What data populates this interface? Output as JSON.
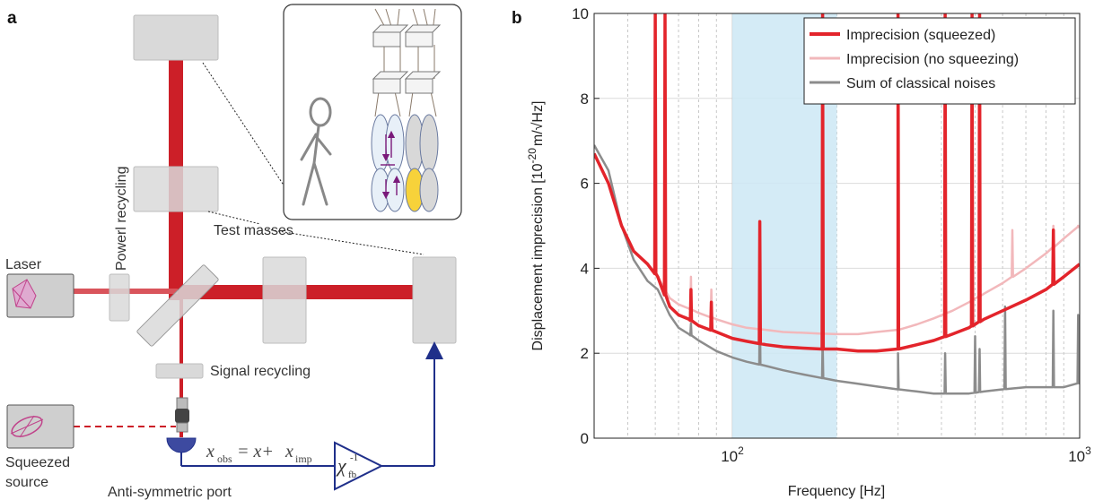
{
  "panel_a": {
    "label": "a",
    "laser_label": "Laser",
    "power_recycling_label": "Powerl recycling",
    "test_masses_label": "Test masses",
    "signal_recycling_label": "Signal recycling",
    "squeezed_source_line1": "Squeezed",
    "squeezed_source_line2": "source",
    "antisym_port_label": "Anti-symmetric port",
    "x_obs_main": "x",
    "x_obs_sub": "obs",
    "equals_plus": "= x+",
    "x_imp_main": "x",
    "x_imp_sub": "imp",
    "chi_main": "χ",
    "chi_sup": "-1",
    "chi_sub": "fb",
    "colors": {
      "beam": "#cc1f28",
      "beam_light": "#e26a70",
      "mirror": "#d9d9d9",
      "feedback": "#1f2f8a",
      "squeeze": "#c0428a"
    }
  },
  "panel_b": {
    "label": "b",
    "chart_data": {
      "type": "line",
      "xscale": "log",
      "xlim": [
        40,
        1000
      ],
      "ylim": [
        0,
        10
      ],
      "xlabel": "Frequency [Hz]",
      "ylabel_main": "Displacement imprecision [10",
      "ylabel_exp": "-20",
      "ylabel_unit": "m/√Hz]",
      "x_ticks": [
        {
          "value": 100,
          "base": "10",
          "exp": "2"
        },
        {
          "value": 1000,
          "base": "10",
          "exp": "3"
        }
      ],
      "y_ticks": [
        0,
        2,
        4,
        6,
        8,
        10
      ],
      "grid": true,
      "legend_position": "top-right",
      "highlight_band": {
        "from": 100,
        "to": 200,
        "color": "#cce8f4"
      },
      "series": [
        {
          "name": "Imprecision (squeezed)",
          "color": "#e3242b",
          "base": [
            [
              40,
              6.7
            ],
            [
              44,
              6.0
            ],
            [
              48,
              5.0
            ],
            [
              52,
              4.4
            ],
            [
              57,
              4.1
            ],
            [
              61,
              3.8
            ],
            [
              66,
              3.1
            ],
            [
              70,
              2.9
            ],
            [
              75,
              2.8
            ],
            [
              80,
              2.65
            ],
            [
              90,
              2.5
            ],
            [
              100,
              2.35
            ],
            [
              110,
              2.28
            ],
            [
              125,
              2.2
            ],
            [
              140,
              2.15
            ],
            [
              160,
              2.12
            ],
            [
              180,
              2.1
            ],
            [
              200,
              2.1
            ],
            [
              230,
              2.05
            ],
            [
              260,
              2.05
            ],
            [
              300,
              2.1
            ],
            [
              340,
              2.2
            ],
            [
              380,
              2.3
            ],
            [
              430,
              2.45
            ],
            [
              480,
              2.6
            ],
            [
              530,
              2.8
            ],
            [
              600,
              3.0
            ],
            [
              700,
              3.25
            ],
            [
              800,
              3.5
            ],
            [
              900,
              3.8
            ],
            [
              1000,
              4.1
            ]
          ],
          "spikes": [
            [
              60,
              10
            ],
            [
              64,
              10
            ],
            [
              76,
              3.5
            ],
            [
              87,
              3.2
            ],
            [
              120,
              5.1
            ],
            [
              182,
              10
            ],
            [
              300,
              10
            ],
            [
              410,
              10
            ],
            [
              490,
              10
            ],
            [
              515,
              10
            ],
            [
              840,
              4.9
            ]
          ]
        },
        {
          "name": "Imprecision (no squeezing)",
          "color": "#f2b8bb",
          "base": [
            [
              40,
              6.7
            ],
            [
              44,
              6.0
            ],
            [
              48,
              5.0
            ],
            [
              52,
              4.4
            ],
            [
              57,
              4.1
            ],
            [
              61,
              3.8
            ],
            [
              66,
              3.3
            ],
            [
              70,
              3.15
            ],
            [
              75,
              3.05
            ],
            [
              80,
              2.95
            ],
            [
              90,
              2.8
            ],
            [
              100,
              2.68
            ],
            [
              110,
              2.6
            ],
            [
              125,
              2.55
            ],
            [
              140,
              2.5
            ],
            [
              160,
              2.48
            ],
            [
              180,
              2.46
            ],
            [
              200,
              2.45
            ],
            [
              230,
              2.45
            ],
            [
              260,
              2.5
            ],
            [
              300,
              2.55
            ],
            [
              340,
              2.68
            ],
            [
              380,
              2.82
            ],
            [
              430,
              3.0
            ],
            [
              480,
              3.2
            ],
            [
              530,
              3.4
            ],
            [
              600,
              3.65
            ],
            [
              700,
              4.0
            ],
            [
              800,
              4.35
            ],
            [
              900,
              4.7
            ],
            [
              1000,
              5.0
            ]
          ],
          "spikes": [
            [
              76,
              3.8
            ],
            [
              87,
              3.5
            ],
            [
              120,
              5.1
            ],
            [
              182,
              10
            ],
            [
              300,
              10
            ],
            [
              515,
              10
            ],
            [
              640,
              4.9
            ],
            [
              840,
              5.0
            ],
            [
              990,
              5.0
            ]
          ]
        },
        {
          "name": "Sum of classical noises",
          "color": "#8c8c8c",
          "base": [
            [
              40,
              6.9
            ],
            [
              44,
              6.3
            ],
            [
              48,
              5.0
            ],
            [
              52,
              4.2
            ],
            [
              57,
              3.7
            ],
            [
              61,
              3.5
            ],
            [
              66,
              2.9
            ],
            [
              70,
              2.6
            ],
            [
              75,
              2.45
            ],
            [
              80,
              2.3
            ],
            [
              90,
              2.05
            ],
            [
              100,
              1.9
            ],
            [
              110,
              1.8
            ],
            [
              125,
              1.7
            ],
            [
              140,
              1.6
            ],
            [
              160,
              1.5
            ],
            [
              180,
              1.42
            ],
            [
              200,
              1.35
            ],
            [
              230,
              1.28
            ],
            [
              260,
              1.22
            ],
            [
              300,
              1.15
            ],
            [
              340,
              1.1
            ],
            [
              380,
              1.05
            ],
            [
              430,
              1.05
            ],
            [
              480,
              1.05
            ],
            [
              530,
              1.1
            ],
            [
              600,
              1.15
            ],
            [
              700,
              1.2
            ],
            [
              800,
              1.2
            ],
            [
              900,
              1.2
            ],
            [
              1000,
              1.3
            ]
          ],
          "spikes": [
            [
              76,
              2.7
            ],
            [
              120,
              3.3
            ],
            [
              182,
              2.3
            ],
            [
              300,
              2.0
            ],
            [
              410,
              2.0
            ],
            [
              500,
              2.4
            ],
            [
              515,
              2.1
            ],
            [
              610,
              3.1
            ],
            [
              840,
              3.0
            ],
            [
              990,
              2.9
            ]
          ]
        }
      ]
    }
  }
}
